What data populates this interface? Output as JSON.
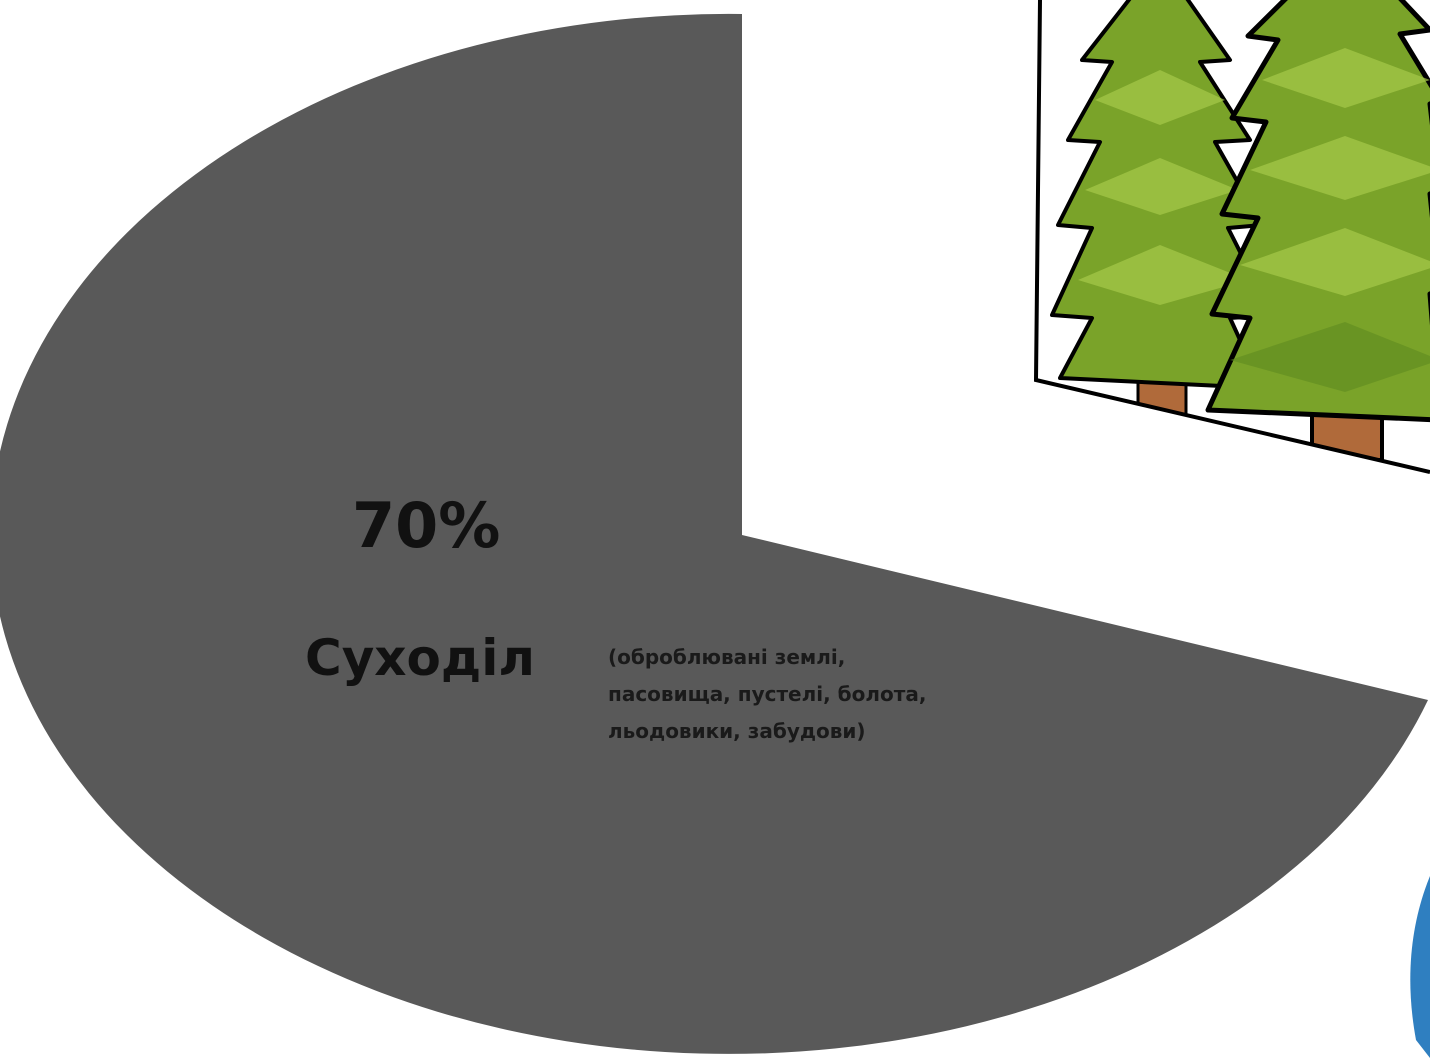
{
  "chart_data": {
    "type": "pie",
    "title": "",
    "slices": [
      {
        "label": "Суходіл",
        "value": 70,
        "value_label": "70%",
        "note_lines": [
          "(оброблювані землі,",
          "пасовища, пустелі, болота,",
          "льодовики, забудови)"
        ],
        "color": "#595959"
      }
    ],
    "other_slices_note": "remaining slices cropped off the right edge",
    "colors": {
      "land": "#595959",
      "forest_green": "#7aa329",
      "forest_green_light": "#a6c94a",
      "forest_green_dark": "#5e8a1f",
      "trunk": "#b06a3a",
      "water_blue": "#2f7fc0"
    },
    "icons": [
      "fir-trees-icon",
      "water-slice-partial"
    ]
  }
}
